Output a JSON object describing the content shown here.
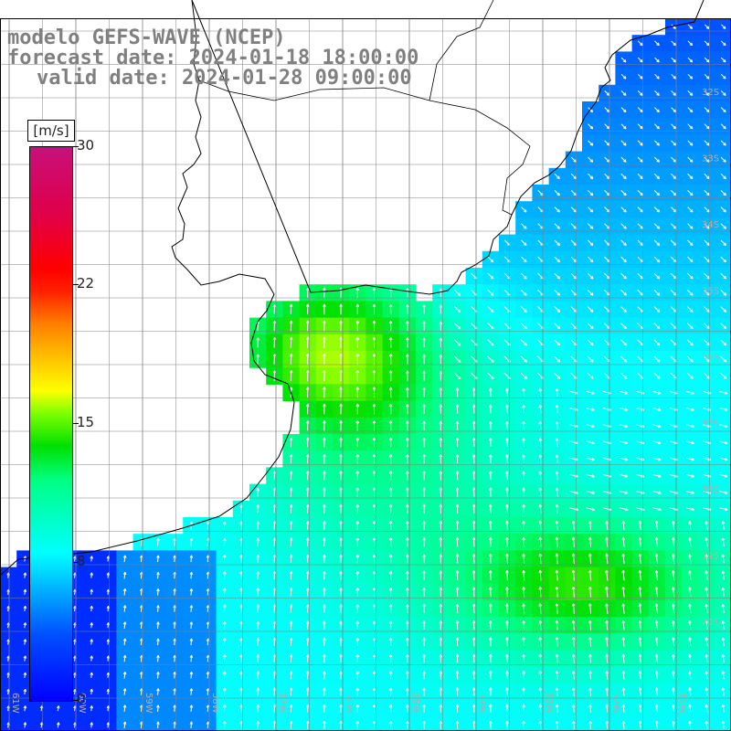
{
  "title": {
    "model": "modelo GEFS-WAVE (NCEP)",
    "forecast": "forecast date: 2024-01-18 18:00:00",
    "valid": "valid date: 2024-01-28 09:00:00"
  },
  "colorbar": {
    "unit": "[m/s]",
    "min": 0,
    "max": 30,
    "ticks": [
      "30",
      "22",
      "15",
      "8",
      "0"
    ]
  },
  "lat_labels": [
    "32S",
    "33S",
    "34S",
    "35S",
    "36S",
    "37S",
    "38S",
    "39S",
    "40S"
  ],
  "lon_labels": [
    "61W",
    "60W",
    "59W",
    "58W",
    "57W",
    "56W",
    "55W",
    "54W",
    "53W",
    "52W",
    "51W"
  ],
  "colors": {
    "land": "#ffffff",
    "grid": "#808080",
    "coast": "#000000",
    "arrows": "#ffffff",
    "text": "#808080"
  },
  "wind_field": {
    "variable": "wind speed and direction",
    "unit": "m/s",
    "grid_step_deg": 0.25,
    "lon_range": [
      -61.2,
      -50.2
    ],
    "lat_range": [
      -31.5,
      -41.7
    ]
  }
}
